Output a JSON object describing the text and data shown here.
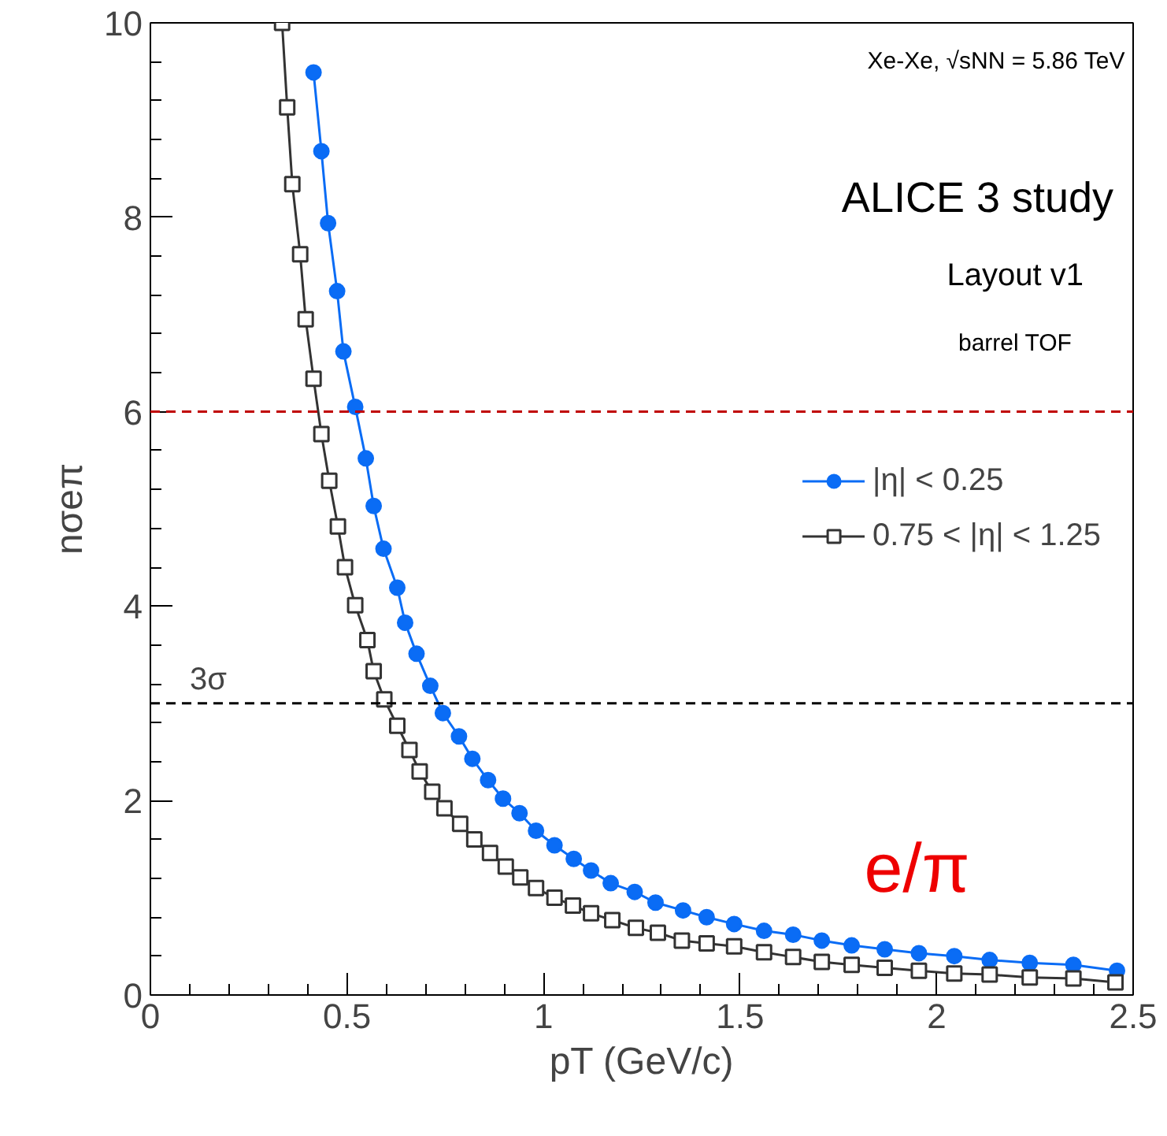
{
  "chart_data": {
    "type": "line",
    "xlabel": "pT (GeV/c)",
    "ylabel": "nσeπ",
    "xlim": [
      0,
      2.5
    ],
    "ylim": [
      0,
      10
    ],
    "xticks": [
      0,
      0.5,
      1,
      1.5,
      2,
      2.5
    ],
    "yticks": [
      0,
      2,
      4,
      6,
      8,
      10
    ],
    "series": [
      {
        "name": "|η| < 0.25",
        "color": "#0a6cf5",
        "marker": "circle",
        "x": [
          0.415,
          0.435,
          0.452,
          0.475,
          0.491,
          0.521,
          0.548,
          0.568,
          0.593,
          0.628,
          0.648,
          0.677,
          0.712,
          0.744,
          0.785,
          0.819,
          0.859,
          0.897,
          0.939,
          0.981,
          1.028,
          1.077,
          1.121,
          1.171,
          1.232,
          1.285,
          1.355,
          1.415,
          1.485,
          1.561,
          1.635,
          1.708,
          1.784,
          1.868,
          1.955,
          2.045,
          2.135,
          2.237,
          2.348,
          2.459
        ],
        "values": [
          9.49,
          8.68,
          7.94,
          7.24,
          6.62,
          6.05,
          5.52,
          5.03,
          4.59,
          4.19,
          3.83,
          3.51,
          3.18,
          2.9,
          2.66,
          2.43,
          2.21,
          2.02,
          1.87,
          1.69,
          1.54,
          1.4,
          1.28,
          1.15,
          1.06,
          0.95,
          0.87,
          0.8,
          0.73,
          0.66,
          0.62,
          0.56,
          0.51,
          0.47,
          0.43,
          0.4,
          0.36,
          0.33,
          0.31,
          0.25
        ]
      },
      {
        "name": "0.75 < |η| < 1.25",
        "color": "#333333",
        "marker": "square",
        "x": [
          0.335,
          0.348,
          0.361,
          0.381,
          0.395,
          0.415,
          0.435,
          0.455,
          0.477,
          0.495,
          0.521,
          0.552,
          0.568,
          0.595,
          0.628,
          0.659,
          0.685,
          0.717,
          0.748,
          0.788,
          0.824,
          0.864,
          0.904,
          0.941,
          0.981,
          1.028,
          1.075,
          1.121,
          1.175,
          1.235,
          1.291,
          1.352,
          1.415,
          1.485,
          1.561,
          1.635,
          1.708,
          1.784,
          1.868,
          1.955,
          2.045,
          2.135,
          2.237,
          2.348,
          2.455
        ],
        "values": [
          10.0,
          9.13,
          8.34,
          7.62,
          6.95,
          6.34,
          5.77,
          5.29,
          4.82,
          4.4,
          4.01,
          3.65,
          3.33,
          3.04,
          2.77,
          2.52,
          2.3,
          2.09,
          1.92,
          1.76,
          1.6,
          1.46,
          1.32,
          1.21,
          1.1,
          1.0,
          0.92,
          0.84,
          0.77,
          0.69,
          0.64,
          0.56,
          0.53,
          0.5,
          0.44,
          0.39,
          0.34,
          0.31,
          0.28,
          0.25,
          0.22,
          0.21,
          0.18,
          0.17,
          0.13
        ]
      }
    ],
    "ref_lines": [
      {
        "axis": "y",
        "value": 6,
        "label": null,
        "color": "#c00000",
        "line_style": "dashed"
      },
      {
        "axis": "y",
        "value": 3,
        "label": "3σ",
        "color": "#000000",
        "line_style": "dashed"
      }
    ],
    "annotations": [
      "Xe-Xe, √sNN = 5.86 TeV",
      "ALICE 3 study",
      "Layout v1",
      "barrel TOF",
      "e/π"
    ],
    "legend": "right",
    "grid": false
  }
}
